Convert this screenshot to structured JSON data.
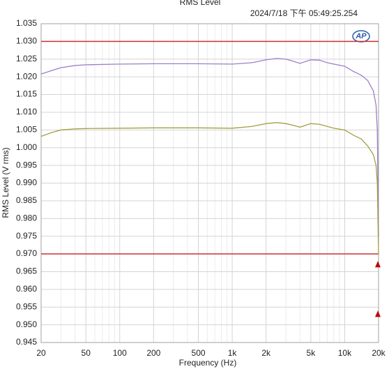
{
  "chart_data": {
    "type": "line",
    "title": "RMS Level",
    "timestamp": "2024/7/18 下午 05:49:25.254",
    "logo": "AP",
    "x_label": "Frequency (Hz)",
    "y_label": "RMS Level (V rms)",
    "x_log": true,
    "grid": true,
    "xlim": [
      20,
      20000
    ],
    "ylim": [
      0.945,
      1.035
    ],
    "xticks": [
      20,
      50,
      100,
      200,
      500,
      {
        "value": 1000,
        "label": "1k"
      },
      {
        "value": 2000,
        "label": "2k"
      },
      {
        "value": 5000,
        "label": "5k"
      },
      {
        "value": 10000,
        "label": "10k"
      },
      {
        "value": 20000,
        "label": "20k"
      }
    ],
    "x_minor_ticks": [
      30,
      40,
      60,
      70,
      80,
      90,
      300,
      400,
      600,
      700,
      800,
      900,
      3000,
      4000,
      6000,
      7000,
      8000,
      9000
    ],
    "yticks": [
      1.035,
      {
        "value": 1.03,
        "label": "1.030"
      },
      1.025,
      {
        "value": 1.02,
        "label": "1.020"
      },
      1.015,
      {
        "value": 1.01,
        "label": "1.010"
      },
      1.005,
      {
        "value": 1.0,
        "label": "1.000"
      },
      0.995,
      {
        "value": 0.99,
        "label": "0.990"
      },
      0.985,
      {
        "value": 0.98,
        "label": "0.980"
      },
      0.975,
      {
        "value": 0.97,
        "label": "0.970"
      },
      0.965,
      {
        "value": 0.96,
        "label": "0.960"
      },
      0.955,
      {
        "value": 0.95,
        "label": "0.950"
      },
      0.945
    ],
    "limit_lines": [
      {
        "value": 1.03,
        "color": "#c83232"
      },
      {
        "value": 0.97,
        "color": "#c83232"
      }
    ],
    "markers": [
      {
        "x": 20000,
        "y": 0.967,
        "color": "#c00000"
      },
      {
        "x": 20000,
        "y": 0.953,
        "color": "#c00000"
      }
    ],
    "x": [
      20,
      25,
      30,
      40,
      50,
      100,
      200,
      500,
      1000,
      1500,
      2000,
      2500,
      3000,
      3500,
      4000,
      5000,
      6000,
      7000,
      8000,
      10000,
      12000,
      14000,
      16000,
      18000,
      19000,
      19500,
      20000
    ],
    "series": [
      {
        "color": "#9b7fc8",
        "values": [
          1.0208,
          1.0218,
          1.0226,
          1.0232,
          1.0234,
          1.0236,
          1.0237,
          1.0237,
          1.0236,
          1.024,
          1.0248,
          1.0252,
          1.025,
          1.0244,
          1.0238,
          1.0248,
          1.0247,
          1.024,
          1.0236,
          1.023,
          1.0215,
          1.0205,
          1.019,
          1.016,
          1.012,
          1.005,
          0.975
        ]
      },
      {
        "color": "#a3a040",
        "values": [
          1.0032,
          1.0043,
          1.005,
          1.0053,
          1.0054,
          1.0055,
          1.0056,
          1.0056,
          1.0055,
          1.006,
          1.0068,
          1.0071,
          1.0068,
          1.0063,
          1.0058,
          1.0068,
          1.0066,
          1.006,
          1.0055,
          1.005,
          1.0035,
          1.0025,
          1.0005,
          0.998,
          0.995,
          0.99,
          0.97
        ]
      }
    ]
  }
}
